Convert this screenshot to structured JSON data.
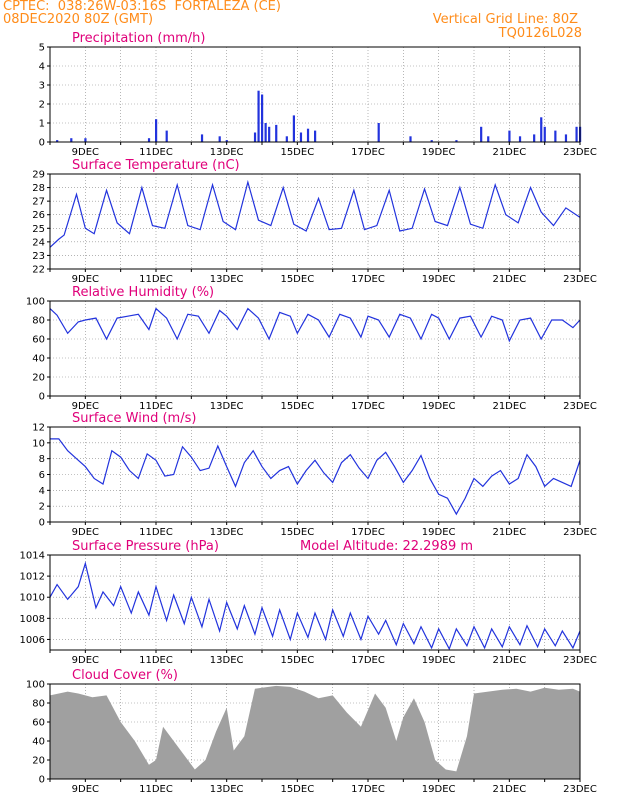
{
  "header": {
    "line1_left": "CPTEC:  038:26W-03:16S  FORTALEZA (CE)",
    "line2_left": "08DEC2020 80Z (GMT)",
    "line1_right": "Vertical Grid Line: 80Z",
    "line2_right": "TQ0126L028"
  },
  "colors": {
    "series": "#2233dd",
    "title": "#e0007a",
    "header": "#ff8c1a",
    "cloud": "#a0a0a0",
    "grid": "#888888"
  },
  "x_tick_labels": [
    "9DEC",
    "11DEC",
    "13DEC",
    "15DEC",
    "17DEC",
    "19DEC",
    "21DEC",
    "23DEC"
  ],
  "chart_data": [
    {
      "type": "bar",
      "title": "Precipitation (mm/h)",
      "ylim": [
        0,
        5
      ],
      "yticks": [
        0,
        1,
        2,
        3,
        4,
        5
      ],
      "x_days": [
        8.2,
        8.6,
        9.0,
        10.8,
        11.0,
        11.3,
        12.3,
        12.8,
        13.0,
        13.8,
        13.9,
        14.0,
        14.1,
        14.2,
        14.4,
        14.7,
        14.9,
        15.1,
        15.3,
        15.5,
        17.3,
        18.2,
        18.8,
        19.5,
        20.2,
        20.4,
        21.0,
        21.3,
        21.7,
        21.9,
        22.0,
        22.3,
        22.6,
        22.9,
        23.0
      ],
      "values": [
        0.1,
        0.2,
        0.2,
        0.2,
        1.2,
        0.6,
        0.4,
        0.3,
        0.1,
        0.5,
        2.7,
        2.5,
        1.0,
        0.8,
        0.9,
        0.3,
        1.4,
        0.5,
        0.7,
        0.6,
        1.0,
        0.3,
        0.1,
        0.1,
        0.8,
        0.3,
        0.6,
        0.3,
        0.4,
        1.3,
        0.8,
        0.6,
        0.4,
        0.8,
        0.8
      ]
    },
    {
      "type": "line",
      "title": "Surface Temperature (nC)",
      "ylim": [
        22,
        29
      ],
      "yticks": [
        22,
        23,
        24,
        25,
        26,
        27,
        28,
        29
      ],
      "x_days": [
        8.0,
        8.25,
        8.4,
        8.75,
        9.0,
        9.25,
        9.6,
        9.9,
        10.25,
        10.6,
        10.9,
        11.25,
        11.6,
        11.9,
        12.25,
        12.6,
        12.9,
        13.25,
        13.6,
        13.9,
        14.25,
        14.6,
        14.9,
        15.25,
        15.6,
        15.9,
        16.25,
        16.6,
        16.9,
        17.25,
        17.6,
        17.9,
        18.25,
        18.6,
        18.9,
        19.25,
        19.6,
        19.9,
        20.25,
        20.6,
        20.9,
        21.25,
        21.6,
        21.9,
        22.25,
        22.6,
        23.0
      ],
      "values": [
        23.6,
        24.2,
        24.5,
        27.5,
        25.0,
        24.6,
        27.8,
        25.4,
        24.6,
        28.0,
        25.2,
        25.0,
        28.2,
        25.2,
        24.9,
        28.2,
        25.5,
        24.9,
        28.4,
        25.6,
        25.2,
        28.0,
        25.3,
        24.8,
        27.2,
        24.9,
        25.0,
        27.8,
        24.9,
        25.2,
        27.8,
        24.8,
        25.0,
        27.9,
        25.5,
        25.2,
        28.0,
        25.3,
        25.0,
        28.2,
        26.0,
        25.4,
        28.0,
        26.2,
        25.2,
        26.5,
        25.8
      ]
    },
    {
      "type": "line",
      "title": "Relative Humidity (%)",
      "ylim": [
        0,
        100
      ],
      "yticks": [
        0,
        20,
        40,
        60,
        80,
        100
      ],
      "x_days": [
        8.0,
        8.2,
        8.5,
        8.8,
        9.0,
        9.3,
        9.6,
        9.9,
        10.2,
        10.5,
        10.8,
        11.0,
        11.3,
        11.6,
        11.9,
        12.2,
        12.5,
        12.8,
        13.0,
        13.3,
        13.6,
        13.9,
        14.2,
        14.5,
        14.8,
        15.0,
        15.3,
        15.6,
        15.9,
        16.2,
        16.5,
        16.8,
        17.0,
        17.3,
        17.6,
        17.9,
        18.2,
        18.5,
        18.8,
        19.0,
        19.3,
        19.6,
        19.9,
        20.2,
        20.5,
        20.8,
        21.0,
        21.3,
        21.6,
        21.9,
        22.2,
        22.5,
        22.8,
        23.0
      ],
      "values": [
        92,
        85,
        66,
        78,
        80,
        82,
        60,
        82,
        84,
        86,
        70,
        92,
        82,
        60,
        86,
        84,
        66,
        90,
        84,
        70,
        92,
        82,
        60,
        88,
        84,
        66,
        86,
        80,
        62,
        86,
        82,
        62,
        84,
        80,
        62,
        86,
        82,
        60,
        86,
        82,
        60,
        82,
        84,
        62,
        84,
        80,
        58,
        80,
        82,
        60,
        80,
        80,
        72,
        80
      ]
    },
    {
      "type": "line",
      "title": "Surface Wind (m/s)",
      "ylim": [
        0,
        12
      ],
      "yticks": [
        0,
        2,
        4,
        6,
        8,
        10,
        12
      ],
      "x_days": [
        8.0,
        8.25,
        8.5,
        8.75,
        9.0,
        9.25,
        9.5,
        9.75,
        10.0,
        10.25,
        10.5,
        10.75,
        11.0,
        11.25,
        11.5,
        11.75,
        12.0,
        12.25,
        12.5,
        12.75,
        13.0,
        13.25,
        13.5,
        13.75,
        14.0,
        14.25,
        14.5,
        14.75,
        15.0,
        15.25,
        15.5,
        15.75,
        16.0,
        16.25,
        16.5,
        16.75,
        17.0,
        17.25,
        17.5,
        17.75,
        18.0,
        18.25,
        18.5,
        18.75,
        19.0,
        19.25,
        19.5,
        19.75,
        20.0,
        20.25,
        20.5,
        20.75,
        21.0,
        21.25,
        21.5,
        21.75,
        22.0,
        22.25,
        22.5,
        22.75,
        23.0
      ],
      "values": [
        10.5,
        10.5,
        9.0,
        8.0,
        7.0,
        5.5,
        4.8,
        9.0,
        8.2,
        6.5,
        5.5,
        8.6,
        7.8,
        5.8,
        6.0,
        9.5,
        8.2,
        6.5,
        6.8,
        9.6,
        7.0,
        4.5,
        7.5,
        9.0,
        7.0,
        5.5,
        6.5,
        7.0,
        4.8,
        6.5,
        7.8,
        6.2,
        5.0,
        7.5,
        8.5,
        6.8,
        5.5,
        7.8,
        8.8,
        7.0,
        5.0,
        6.5,
        8.4,
        5.5,
        3.5,
        3.0,
        1.0,
        3.0,
        5.5,
        4.5,
        5.8,
        6.5,
        4.8,
        5.5,
        8.5,
        7.0,
        4.5,
        5.5,
        5.0,
        4.5,
        7.8
      ]
    },
    {
      "type": "line",
      "title": "Surface Pressure (hPa)",
      "annotation": "Model Altitude: 22.2989 m",
      "ylim": [
        1005,
        1014
      ],
      "yticks": [
        1006,
        1008,
        1010,
        1012,
        1014
      ],
      "x_days": [
        8.0,
        8.2,
        8.5,
        8.8,
        9.0,
        9.3,
        9.5,
        9.8,
        10.0,
        10.3,
        10.5,
        10.8,
        11.0,
        11.3,
        11.5,
        11.8,
        12.0,
        12.3,
        12.5,
        12.8,
        13.0,
        13.3,
        13.5,
        13.8,
        14.0,
        14.3,
        14.5,
        14.8,
        15.0,
        15.3,
        15.5,
        15.8,
        16.0,
        16.3,
        16.5,
        16.8,
        17.0,
        17.3,
        17.5,
        17.8,
        18.0,
        18.3,
        18.5,
        18.8,
        19.0,
        19.3,
        19.5,
        19.8,
        20.0,
        20.3,
        20.5,
        20.8,
        21.0,
        21.3,
        21.5,
        21.8,
        22.0,
        22.3,
        22.5,
        22.8,
        23.0
      ],
      "values": [
        1010.0,
        1011.2,
        1009.8,
        1011.0,
        1013.2,
        1009.0,
        1010.5,
        1009.2,
        1011.0,
        1008.5,
        1010.5,
        1008.3,
        1011.0,
        1007.8,
        1010.2,
        1007.5,
        1010.0,
        1007.2,
        1009.8,
        1006.8,
        1009.5,
        1007.0,
        1009.2,
        1006.5,
        1009.0,
        1006.3,
        1008.8,
        1006.0,
        1008.5,
        1006.2,
        1008.5,
        1006.0,
        1008.8,
        1006.3,
        1008.5,
        1006.0,
        1008.2,
        1006.5,
        1007.8,
        1005.5,
        1007.5,
        1005.6,
        1007.2,
        1005.2,
        1007.0,
        1005.1,
        1007.0,
        1005.4,
        1007.2,
        1005.2,
        1007.0,
        1005.3,
        1007.2,
        1005.5,
        1007.3,
        1005.3,
        1007.0,
        1005.4,
        1006.8,
        1005.2,
        1006.8
      ]
    },
    {
      "type": "area",
      "title": "Cloud Cover (%)",
      "ylim": [
        0,
        100
      ],
      "yticks": [
        0,
        20,
        40,
        60,
        80,
        100
      ],
      "x_days": [
        8.0,
        8.5,
        8.8,
        9.2,
        9.6,
        10.0,
        10.4,
        10.8,
        11.0,
        11.2,
        11.5,
        11.8,
        12.1,
        12.4,
        12.7,
        13.0,
        13.2,
        13.5,
        13.8,
        14.0,
        14.4,
        14.8,
        15.2,
        15.6,
        16.0,
        16.4,
        16.8,
        17.2,
        17.5,
        17.8,
        18.0,
        18.3,
        18.6,
        18.9,
        19.2,
        19.5,
        19.8,
        20.0,
        20.4,
        20.8,
        21.2,
        21.6,
        22.0,
        22.4,
        22.8,
        23.0
      ],
      "values": [
        88,
        92,
        90,
        86,
        88,
        60,
        40,
        15,
        20,
        55,
        40,
        25,
        10,
        20,
        50,
        75,
        30,
        45,
        95,
        96,
        98,
        97,
        92,
        85,
        88,
        70,
        55,
        90,
        75,
        40,
        65,
        85,
        60,
        20,
        10,
        8,
        45,
        90,
        92,
        94,
        95,
        92,
        96,
        94,
        95,
        92
      ]
    }
  ]
}
